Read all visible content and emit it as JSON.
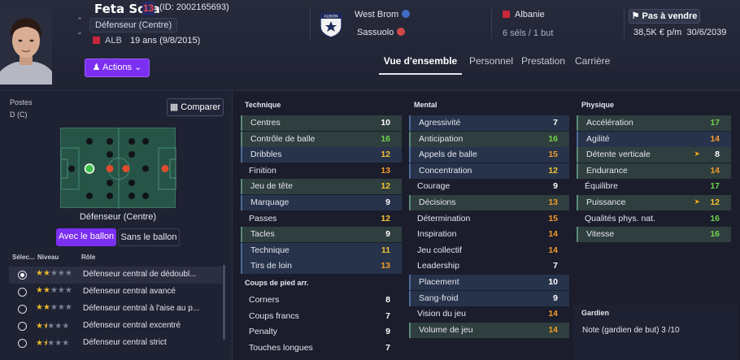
{
  "header": {
    "player_name": "Feta Sota",
    "shirt_number": "13",
    "player_id": "(ID: 2002165693)",
    "position": "Défenseur (Centre)",
    "nation_code": "ALB",
    "age": "19 ans (9/8/2015)",
    "actions_label": "Actions",
    "club_main": "West Brom",
    "club_loan": "Sassuolo",
    "nation": "Albanie",
    "caps": "6 séls / 1 but",
    "transfer_status": "Pas à vendre",
    "wage_contract": "38,5K € p/m",
    "contract_end": "30/6/2039",
    "crest_text": "ALBION"
  },
  "tabs": [
    "Vue d'ensemble",
    "Personnel",
    "Prestation",
    "Carrière"
  ],
  "left": {
    "postes_label": "Postes",
    "postes_value": "D (C)",
    "compare_label": "Comparer",
    "position_caption": "Défenseur (Centre)",
    "with_ball": "Avec le ballon",
    "without_ball": "Sans le ballon",
    "col_select": "Sélec...",
    "col_level": "Niveau",
    "col_role": "Rôle",
    "roles": [
      {
        "name": "Défenseur central de dédoubl...",
        "stars": 2,
        "selected": true
      },
      {
        "name": "Défenseur central avancé",
        "stars": 2,
        "selected": false
      },
      {
        "name": "Défenseur central à l'aise au p...",
        "stars": 2,
        "selected": false
      },
      {
        "name": "Défenseur central excentré",
        "stars": 1.5,
        "selected": false
      },
      {
        "name": "Défenseur central strict",
        "stars": 1.5,
        "selected": false
      }
    ]
  },
  "technique": {
    "title": "Technique",
    "attrs": [
      {
        "name": "Centres",
        "value": "10",
        "hl": "g"
      },
      {
        "name": "Contrôle de balle",
        "value": "16",
        "hl": "g"
      },
      {
        "name": "Dribbles",
        "value": "12",
        "hl": "b"
      },
      {
        "name": "Finition",
        "value": "13",
        "hl": ""
      },
      {
        "name": "Jeu de tête",
        "value": "12",
        "hl": "g"
      },
      {
        "name": "Marquage",
        "value": "9",
        "hl": "b"
      },
      {
        "name": "Passes",
        "value": "12",
        "hl": ""
      },
      {
        "name": "Tacles",
        "value": "9",
        "hl": "g"
      },
      {
        "name": "Technique",
        "value": "11",
        "hl": "b"
      },
      {
        "name": "Tirs de loin",
        "value": "13",
        "hl": "b"
      }
    ]
  },
  "set_pieces": {
    "title": "Coups de pied arr.",
    "attrs": [
      {
        "name": "Corners",
        "value": "8",
        "hl": ""
      },
      {
        "name": "Coups francs",
        "value": "7",
        "hl": ""
      },
      {
        "name": "Penalty",
        "value": "9",
        "hl": ""
      },
      {
        "name": "Touches longues",
        "value": "7",
        "hl": ""
      }
    ]
  },
  "mental": {
    "title": "Mental",
    "attrs": [
      {
        "name": "Agressivité",
        "value": "7",
        "hl": "b"
      },
      {
        "name": "Anticipation",
        "value": "16",
        "hl": "g"
      },
      {
        "name": "Appels de balle",
        "value": "15",
        "hl": "b"
      },
      {
        "name": "Concentration",
        "value": "12",
        "hl": "b"
      },
      {
        "name": "Courage",
        "value": "9",
        "hl": ""
      },
      {
        "name": "Décisions",
        "value": "13",
        "hl": "g"
      },
      {
        "name": "Détermination",
        "value": "15",
        "hl": ""
      },
      {
        "name": "Inspiration",
        "value": "14",
        "hl": ""
      },
      {
        "name": "Jeu collectif",
        "value": "14",
        "hl": ""
      },
      {
        "name": "Leadership",
        "value": "7",
        "hl": ""
      },
      {
        "name": "Placement",
        "value": "10",
        "hl": "b"
      },
      {
        "name": "Sang-froid",
        "value": "9",
        "hl": "b"
      },
      {
        "name": "Vision du jeu",
        "value": "14",
        "hl": ""
      },
      {
        "name": "Volume de jeu",
        "value": "14",
        "hl": "g"
      }
    ]
  },
  "physique": {
    "title": "Physique",
    "attrs": [
      {
        "name": "Accélération",
        "value": "17",
        "hl": "g"
      },
      {
        "name": "Agilité",
        "value": "14",
        "hl": "b"
      },
      {
        "name": "Détente verticale",
        "value": "8",
        "hl": "g",
        "trend": true
      },
      {
        "name": "Endurance",
        "value": "14",
        "hl": "g"
      },
      {
        "name": "Équilibre",
        "value": "17",
        "hl": ""
      },
      {
        "name": "Puissance",
        "value": "12",
        "hl": "g",
        "trend": true
      },
      {
        "name": "Qualités phys. nat.",
        "value": "16",
        "hl": ""
      },
      {
        "name": "Vitesse",
        "value": "16",
        "hl": "g"
      }
    ]
  },
  "goalkeeper": {
    "title": "Gardien",
    "rating_label": "Note (gardien de but)",
    "rating_value": "3 /10"
  }
}
